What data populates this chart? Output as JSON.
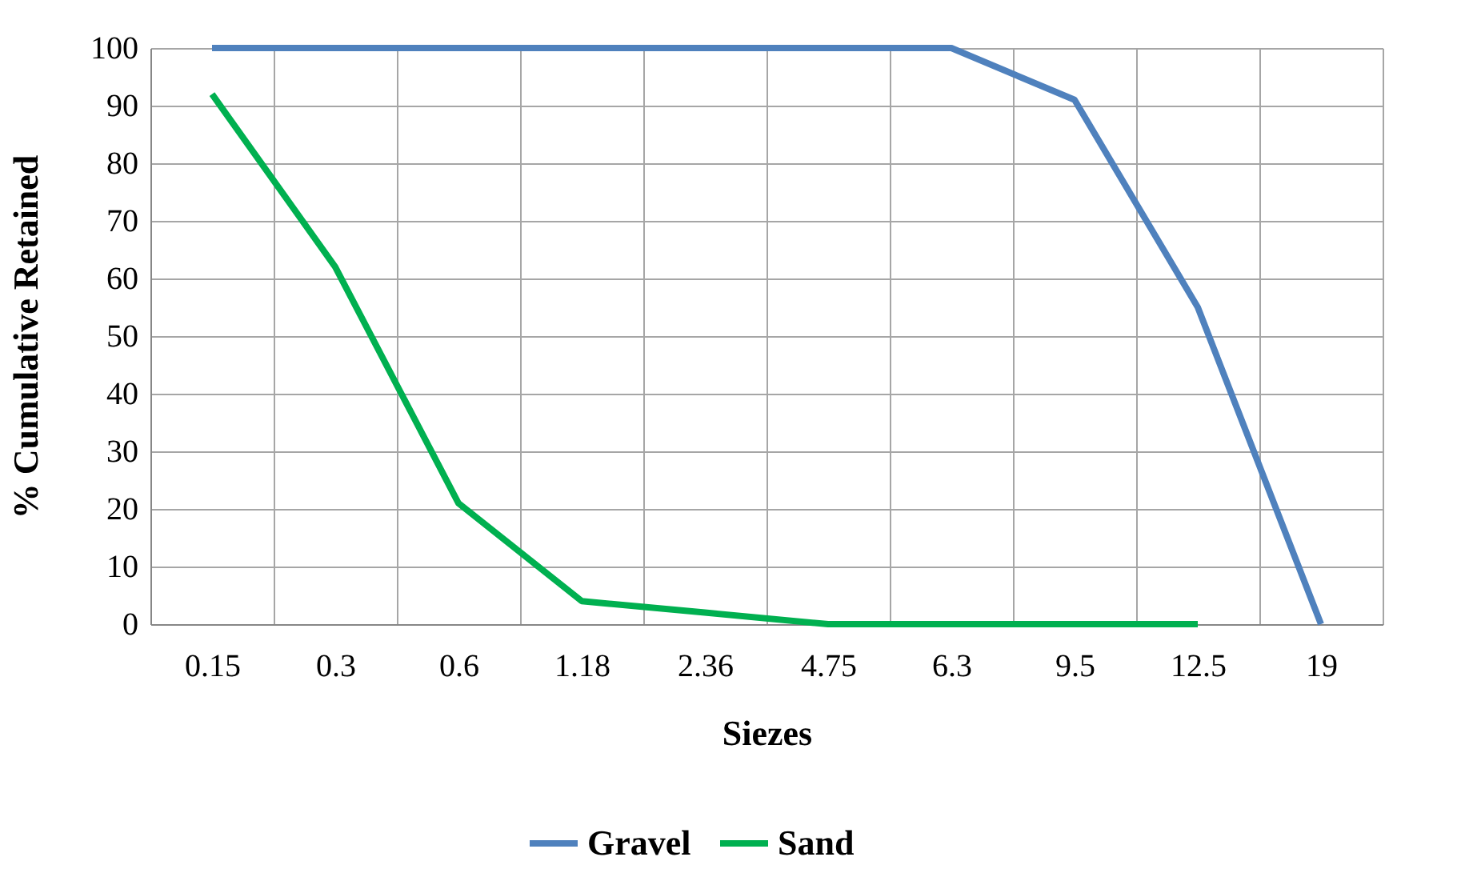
{
  "chart_data": {
    "type": "line",
    "xlabel": "Siezes",
    "ylabel": "% Cumulative Retained",
    "categories": [
      "0.15",
      "0.3",
      "0.6",
      "1.18",
      "2.36",
      "4.75",
      "6.3",
      "9.5",
      "12.5",
      "19"
    ],
    "series": [
      {
        "name": "Gravel",
        "color": "#4f81bd",
        "values": [
          100,
          100,
          100,
          100,
          100,
          100,
          100,
          91,
          55,
          0
        ]
      },
      {
        "name": "Sand",
        "color": "#00b050",
        "values": [
          92,
          62,
          21,
          4,
          2,
          0,
          0,
          0,
          0,
          null
        ]
      }
    ],
    "ylim": [
      0,
      100
    ],
    "yticks": [
      0,
      10,
      20,
      30,
      40,
      50,
      60,
      70,
      80,
      90,
      100
    ],
    "grid": true,
    "legend": "bottom",
    "marker": "none",
    "line_style": "solid"
  }
}
